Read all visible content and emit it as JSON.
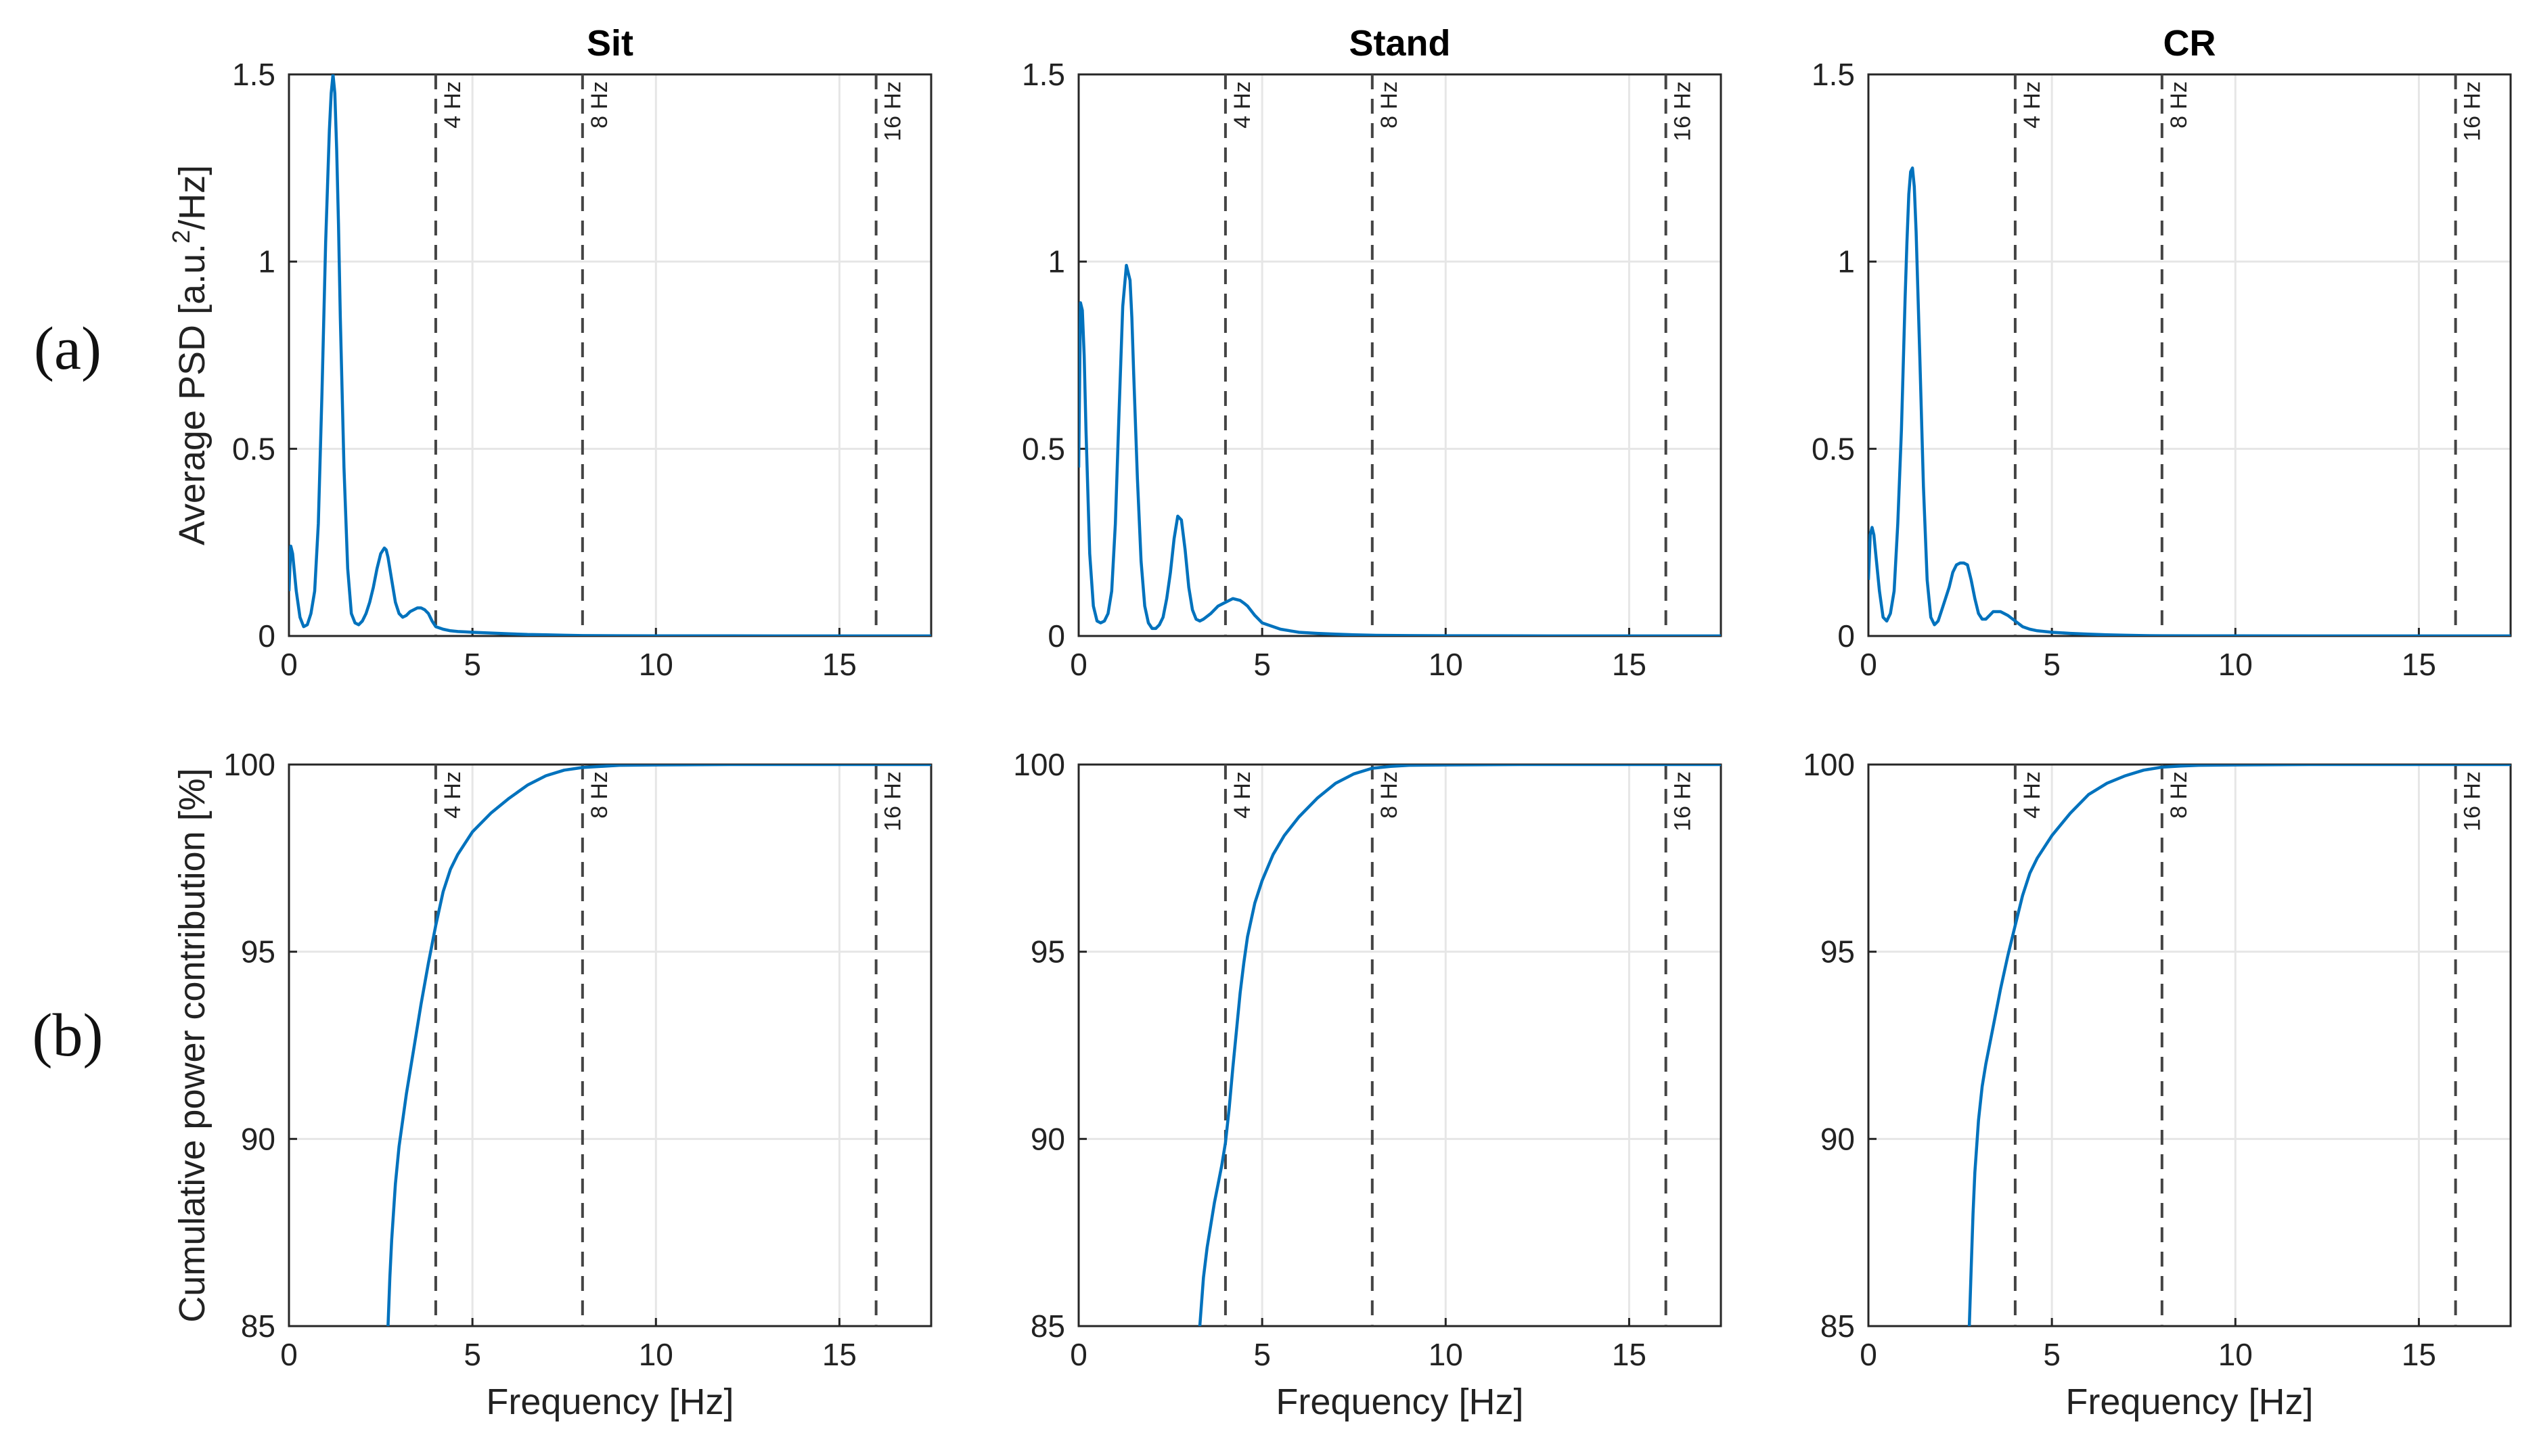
{
  "figure": {
    "row_labels": [
      "(a)",
      "(b)"
    ],
    "columns": [
      "Sit",
      "Stand",
      "CR"
    ],
    "colors": {
      "line": "#0072BD",
      "marker": "#444444",
      "axis": "#262626",
      "grid": "#e6e6e6",
      "text": "#222222"
    }
  },
  "chart_data": [
    {
      "id": "psd-sit",
      "type": "line",
      "title": "Sit",
      "xlabel": "",
      "ylabel": "Average PSD [a.u.²/Hz]",
      "ylabel_parts": [
        "Average PSD [a.u.",
        "2",
        "/Hz]"
      ],
      "xlim": [
        0,
        17.5
      ],
      "ylim": [
        0,
        1.5
      ],
      "xticks": [
        0,
        5,
        10,
        15
      ],
      "yticks": [
        0,
        0.5,
        1,
        1.5
      ],
      "ytick_labels": [
        "0",
        "0.5",
        "1",
        "1.5"
      ],
      "grid": true,
      "markers": [
        {
          "x": 4,
          "label": "4 Hz"
        },
        {
          "x": 8,
          "label": "8 Hz"
        },
        {
          "x": 16,
          "label": "16 Hz"
        }
      ],
      "series": [
        {
          "name": "PSD",
          "x": [
            0,
            0.05,
            0.1,
            0.2,
            0.3,
            0.4,
            0.5,
            0.6,
            0.7,
            0.8,
            0.9,
            1.0,
            1.1,
            1.15,
            1.2,
            1.25,
            1.3,
            1.35,
            1.4,
            1.5,
            1.6,
            1.7,
            1.8,
            1.9,
            2.0,
            2.1,
            2.2,
            2.3,
            2.4,
            2.5,
            2.6,
            2.65,
            2.7,
            2.8,
            2.9,
            3.0,
            3.1,
            3.2,
            3.3,
            3.4,
            3.5,
            3.6,
            3.7,
            3.8,
            3.9,
            4.0,
            4.2,
            4.4,
            4.6,
            4.8,
            5.0,
            5.5,
            6.0,
            6.5,
            7.0,
            7.5,
            8.0,
            9.0,
            10.0,
            12.0,
            14.0,
            16.0,
            17.5
          ],
          "y": [
            0.12,
            0.24,
            0.22,
            0.12,
            0.05,
            0.025,
            0.03,
            0.06,
            0.12,
            0.3,
            0.65,
            1.05,
            1.35,
            1.45,
            1.5,
            1.45,
            1.3,
            1.1,
            0.85,
            0.45,
            0.18,
            0.06,
            0.035,
            0.03,
            0.04,
            0.06,
            0.09,
            0.13,
            0.18,
            0.22,
            0.235,
            0.23,
            0.21,
            0.15,
            0.09,
            0.06,
            0.05,
            0.055,
            0.065,
            0.07,
            0.075,
            0.075,
            0.07,
            0.06,
            0.04,
            0.025,
            0.018,
            0.014,
            0.012,
            0.011,
            0.01,
            0.008,
            0.006,
            0.004,
            0.003,
            0.002,
            0.001,
            0.0007,
            0.0005,
            0.0003,
            0.0002,
            0.0001,
            0.0001
          ]
        }
      ]
    },
    {
      "id": "psd-stand",
      "type": "line",
      "title": "Stand",
      "xlabel": "",
      "ylabel": "",
      "xlim": [
        0,
        17.5
      ],
      "ylim": [
        0,
        1.5
      ],
      "xticks": [
        0,
        5,
        10,
        15
      ],
      "yticks": [
        0,
        0.5,
        1,
        1.5
      ],
      "ytick_labels": [
        "0",
        "0.5",
        "1",
        "1.5"
      ],
      "grid": true,
      "markers": [
        {
          "x": 4,
          "label": "4 Hz"
        },
        {
          "x": 8,
          "label": "8 Hz"
        },
        {
          "x": 16,
          "label": "16 Hz"
        }
      ],
      "series": [
        {
          "name": "PSD",
          "x": [
            0,
            0.05,
            0.1,
            0.15,
            0.2,
            0.3,
            0.4,
            0.5,
            0.6,
            0.7,
            0.8,
            0.9,
            1.0,
            1.1,
            1.2,
            1.3,
            1.4,
            1.45,
            1.5,
            1.6,
            1.7,
            1.8,
            1.9,
            2.0,
            2.1,
            2.2,
            2.3,
            2.4,
            2.5,
            2.6,
            2.7,
            2.8,
            2.9,
            3.0,
            3.1,
            3.2,
            3.3,
            3.4,
            3.6,
            3.8,
            4.0,
            4.2,
            4.4,
            4.5,
            4.6,
            4.8,
            5.0,
            5.5,
            6.0,
            6.5,
            7.0,
            7.5,
            8.0,
            9.0,
            10.0,
            12.0,
            14.0,
            16.0,
            17.5
          ],
          "y": [
            0.45,
            0.89,
            0.87,
            0.75,
            0.55,
            0.22,
            0.08,
            0.04,
            0.035,
            0.04,
            0.06,
            0.12,
            0.3,
            0.6,
            0.88,
            0.99,
            0.95,
            0.85,
            0.7,
            0.42,
            0.2,
            0.08,
            0.035,
            0.02,
            0.02,
            0.03,
            0.05,
            0.1,
            0.17,
            0.26,
            0.32,
            0.31,
            0.23,
            0.13,
            0.07,
            0.045,
            0.04,
            0.045,
            0.06,
            0.08,
            0.09,
            0.1,
            0.095,
            0.088,
            0.08,
            0.055,
            0.035,
            0.018,
            0.01,
            0.007,
            0.005,
            0.003,
            0.002,
            0.001,
            0.0007,
            0.0004,
            0.0002,
            0.0001,
            0.0001
          ]
        }
      ]
    },
    {
      "id": "psd-cr",
      "type": "line",
      "title": "CR",
      "xlabel": "",
      "ylabel": "",
      "xlim": [
        0,
        17.5
      ],
      "ylim": [
        0,
        1.5
      ],
      "xticks": [
        0,
        5,
        10,
        15
      ],
      "yticks": [
        0,
        0.5,
        1,
        1.5
      ],
      "ytick_labels": [
        "0",
        "0.5",
        "1",
        "1.5"
      ],
      "grid": true,
      "markers": [
        {
          "x": 4,
          "label": "4 Hz"
        },
        {
          "x": 8,
          "label": "8 Hz"
        },
        {
          "x": 16,
          "label": "16 Hz"
        }
      ],
      "series": [
        {
          "name": "PSD",
          "x": [
            0,
            0.05,
            0.1,
            0.15,
            0.2,
            0.3,
            0.4,
            0.5,
            0.6,
            0.7,
            0.8,
            0.9,
            1.0,
            1.05,
            1.1,
            1.15,
            1.2,
            1.25,
            1.3,
            1.4,
            1.5,
            1.6,
            1.7,
            1.8,
            1.9,
            2.0,
            2.1,
            2.2,
            2.3,
            2.4,
            2.5,
            2.6,
            2.7,
            2.8,
            2.9,
            3.0,
            3.1,
            3.2,
            3.3,
            3.4,
            3.6,
            3.8,
            4.0,
            4.2,
            4.4,
            4.6,
            4.8,
            5.0,
            5.5,
            6.0,
            6.5,
            7.0,
            7.5,
            8.0,
            9.0,
            10.0,
            12.0,
            14.0,
            16.0,
            17.5
          ],
          "y": [
            0.15,
            0.27,
            0.29,
            0.27,
            0.22,
            0.12,
            0.05,
            0.04,
            0.06,
            0.12,
            0.3,
            0.55,
            0.9,
            1.05,
            1.18,
            1.24,
            1.25,
            1.2,
            1.08,
            0.75,
            0.4,
            0.15,
            0.05,
            0.03,
            0.04,
            0.07,
            0.1,
            0.13,
            0.17,
            0.19,
            0.195,
            0.195,
            0.19,
            0.15,
            0.1,
            0.06,
            0.045,
            0.045,
            0.055,
            0.065,
            0.065,
            0.055,
            0.04,
            0.025,
            0.018,
            0.014,
            0.012,
            0.01,
            0.007,
            0.005,
            0.003,
            0.002,
            0.001,
            0.0007,
            0.0005,
            0.0003,
            0.0002,
            0.0001,
            0.0001,
            0.0001
          ]
        }
      ]
    },
    {
      "id": "cum-sit",
      "type": "line",
      "title": "",
      "xlabel": "Frequency [Hz]",
      "ylabel": "Cumulative power contribution [%]",
      "xlim": [
        0,
        17.5
      ],
      "ylim": [
        85,
        100
      ],
      "xticks": [
        0,
        5,
        10,
        15
      ],
      "yticks": [
        85,
        90,
        95,
        100
      ],
      "ytick_labels": [
        "85",
        "90",
        "95",
        "100"
      ],
      "grid": true,
      "markers": [
        {
          "x": 4,
          "label": "4 Hz"
        },
        {
          "x": 8,
          "label": "8 Hz"
        },
        {
          "x": 16,
          "label": "16 Hz"
        }
      ],
      "series": [
        {
          "name": "Cumulative power",
          "x": [
            2.7,
            2.75,
            2.8,
            2.9,
            3.0,
            3.2,
            3.4,
            3.6,
            3.8,
            4.0,
            4.2,
            4.4,
            4.6,
            4.8,
            5.0,
            5.5,
            6.0,
            6.5,
            7.0,
            7.5,
            8.0,
            8.5,
            9.0,
            10.0,
            12.0,
            14.0,
            16.0,
            17.5
          ],
          "y": [
            85.0,
            86.3,
            87.3,
            88.8,
            89.8,
            91.2,
            92.4,
            93.6,
            94.7,
            95.7,
            96.6,
            97.2,
            97.6,
            97.9,
            98.2,
            98.7,
            99.1,
            99.45,
            99.7,
            99.85,
            99.92,
            99.95,
            99.98,
            99.99,
            100,
            100,
            100,
            100
          ]
        }
      ]
    },
    {
      "id": "cum-stand",
      "type": "line",
      "title": "",
      "xlabel": "Frequency [Hz]",
      "ylabel": "",
      "xlim": [
        0,
        17.5
      ],
      "ylim": [
        85,
        100
      ],
      "xticks": [
        0,
        5,
        10,
        15
      ],
      "yticks": [
        85,
        90,
        95,
        100
      ],
      "ytick_labels": [
        "85",
        "90",
        "95",
        "100"
      ],
      "grid": true,
      "markers": [
        {
          "x": 4,
          "label": "4 Hz"
        },
        {
          "x": 8,
          "label": "8 Hz"
        },
        {
          "x": 16,
          "label": "16 Hz"
        }
      ],
      "series": [
        {
          "name": "Cumulative power",
          "x": [
            3.3,
            3.4,
            3.5,
            3.6,
            3.7,
            3.8,
            3.9,
            4.0,
            4.1,
            4.2,
            4.3,
            4.4,
            4.5,
            4.6,
            4.8,
            5.0,
            5.3,
            5.6,
            6.0,
            6.5,
            7.0,
            7.5,
            8.0,
            8.5,
            9.0,
            10.0,
            12.0,
            14.0,
            16.0,
            17.5
          ],
          "y": [
            85.0,
            86.3,
            87.1,
            87.7,
            88.3,
            88.8,
            89.3,
            89.9,
            90.8,
            91.9,
            92.9,
            93.9,
            94.7,
            95.4,
            96.3,
            96.9,
            97.6,
            98.1,
            98.6,
            99.1,
            99.5,
            99.75,
            99.9,
            99.95,
            99.98,
            99.99,
            100,
            100,
            100,
            100
          ]
        }
      ]
    },
    {
      "id": "cum-cr",
      "type": "line",
      "title": "",
      "xlabel": "Frequency [Hz]",
      "ylabel": "",
      "xlim": [
        0,
        17.5
      ],
      "ylim": [
        85,
        100
      ],
      "xticks": [
        0,
        5,
        10,
        15
      ],
      "yticks": [
        85,
        90,
        95,
        100
      ],
      "ytick_labels": [
        "85",
        "90",
        "95",
        "100"
      ],
      "grid": true,
      "markers": [
        {
          "x": 4,
          "label": "4 Hz"
        },
        {
          "x": 8,
          "label": "8 Hz"
        },
        {
          "x": 16,
          "label": "16 Hz"
        }
      ],
      "series": [
        {
          "name": "Cumulative power",
          "x": [
            2.75,
            2.8,
            2.85,
            2.9,
            3.0,
            3.1,
            3.2,
            3.4,
            3.6,
            3.8,
            4.0,
            4.2,
            4.4,
            4.6,
            4.8,
            5.0,
            5.5,
            6.0,
            6.5,
            7.0,
            7.5,
            8.0,
            8.5,
            9.0,
            10.0,
            12.0,
            14.0,
            16.0,
            17.5
          ],
          "y": [
            85.0,
            86.5,
            88.0,
            89.1,
            90.5,
            91.4,
            92.0,
            93.0,
            94.0,
            94.9,
            95.7,
            96.5,
            97.1,
            97.5,
            97.8,
            98.1,
            98.7,
            99.2,
            99.5,
            99.7,
            99.85,
            99.93,
            99.96,
            99.98,
            99.99,
            100,
            100,
            100,
            100
          ]
        }
      ]
    }
  ]
}
